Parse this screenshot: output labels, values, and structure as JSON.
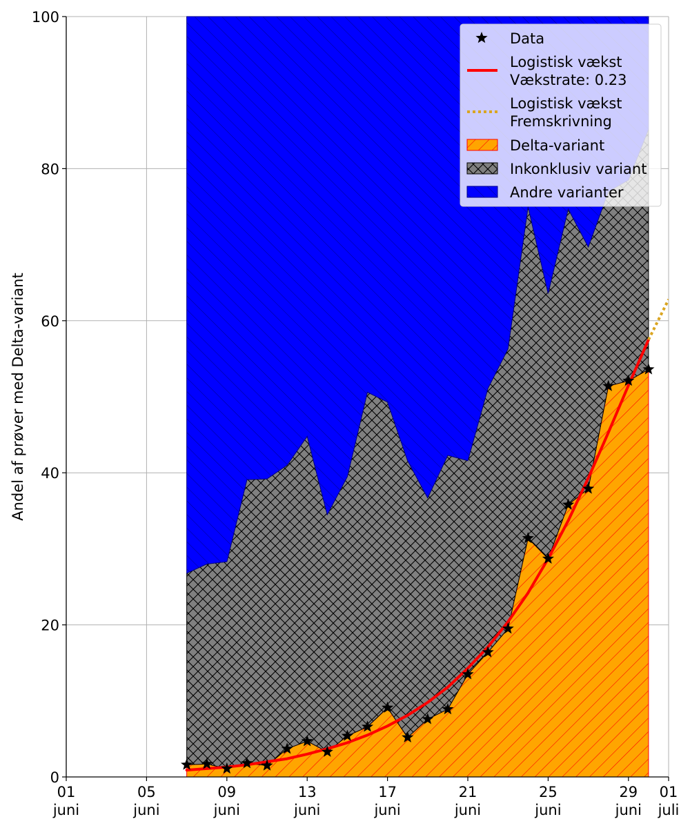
{
  "chart_data": {
    "type": "area",
    "title": "",
    "xlabel": "",
    "ylabel": "Andel af prøver med Delta-variant",
    "xlim": [
      "2021-06-01",
      "2021-07-01"
    ],
    "ylim": [
      0,
      100
    ],
    "grid": true,
    "legend_position": "top-right",
    "x_ticks": [
      {
        "date": "2021-06-01",
        "day": "01",
        "month": "juni"
      },
      {
        "date": "2021-06-05",
        "day": "05",
        "month": "juni"
      },
      {
        "date": "2021-06-09",
        "day": "09",
        "month": "juni"
      },
      {
        "date": "2021-06-13",
        "day": "13",
        "month": "juni"
      },
      {
        "date": "2021-06-17",
        "day": "17",
        "month": "juni"
      },
      {
        "date": "2021-06-21",
        "day": "21",
        "month": "juni"
      },
      {
        "date": "2021-06-25",
        "day": "25",
        "month": "juni"
      },
      {
        "date": "2021-06-29",
        "day": "29",
        "month": "juni"
      },
      {
        "date": "2021-07-01",
        "day": "01",
        "month": "juli"
      }
    ],
    "y_ticks": [
      0,
      20,
      40,
      60,
      80,
      100
    ],
    "x": [
      "2021-06-07",
      "2021-06-08",
      "2021-06-09",
      "2021-06-10",
      "2021-06-11",
      "2021-06-12",
      "2021-06-13",
      "2021-06-14",
      "2021-06-15",
      "2021-06-16",
      "2021-06-17",
      "2021-06-18",
      "2021-06-19",
      "2021-06-20",
      "2021-06-21",
      "2021-06-22",
      "2021-06-23",
      "2021-06-24",
      "2021-06-25",
      "2021-06-26",
      "2021-06-27",
      "2021-06-28",
      "2021-06-29",
      "2021-06-30"
    ],
    "series": [
      {
        "name": "Delta-variant",
        "kind": "stacked-area",
        "color": "#FFA500",
        "hatch_color": "#FF0000",
        "values": [
          1.6,
          1.7,
          1.1,
          1.8,
          1.5,
          3.7,
          4.7,
          3.3,
          5.4,
          6.6,
          9.1,
          5.2,
          7.6,
          8.9,
          13.5,
          16.4,
          19.5,
          31.4,
          28.7,
          35.8,
          37.9,
          51.4,
          52.1,
          53.6
        ]
      },
      {
        "name": "Inkonklusiv variant",
        "kind": "stacked-area",
        "color": "#808080",
        "hatch_color": "#000000",
        "values": [
          25.2,
          26.3,
          27.2,
          37.3,
          37.7,
          37.3,
          40.1,
          31.2,
          34.1,
          44.0,
          40.2,
          36.4,
          29.1,
          33.4,
          28.1,
          34.7,
          36.8,
          43.6,
          34.9,
          38.9,
          31.8,
          25.6,
          26.4,
          31.6
        ]
      },
      {
        "name": "Andre varianter",
        "kind": "stacked-area",
        "color": "#0000FF",
        "hatch_color": "#00008B",
        "values": [
          73.2,
          72.0,
          71.7,
          60.9,
          60.8,
          59.0,
          55.2,
          65.5,
          60.5,
          49.4,
          50.7,
          58.4,
          63.3,
          57.7,
          58.4,
          48.9,
          43.7,
          25.0,
          36.4,
          25.3,
          30.3,
          23.0,
          21.5,
          14.8
        ]
      },
      {
        "name": "Data",
        "kind": "markers",
        "color": "#000000",
        "marker": "star",
        "values": [
          1.6,
          1.7,
          1.1,
          1.8,
          1.5,
          3.7,
          4.7,
          3.3,
          5.4,
          6.6,
          9.1,
          5.2,
          7.6,
          8.9,
          13.5,
          16.4,
          19.5,
          31.4,
          28.7,
          35.8,
          37.9,
          51.4,
          52.1,
          53.6
        ]
      },
      {
        "name": "Logistisk vækst\nVækstrate: 0.23",
        "kind": "line",
        "color": "#FF0000",
        "style": "solid",
        "x": [
          "2021-06-07",
          "2021-06-08",
          "2021-06-09",
          "2021-06-10",
          "2021-06-11",
          "2021-06-12",
          "2021-06-13",
          "2021-06-14",
          "2021-06-15",
          "2021-06-16",
          "2021-06-17",
          "2021-06-18",
          "2021-06-19",
          "2021-06-20",
          "2021-06-21",
          "2021-06-22",
          "2021-06-23",
          "2021-06-24",
          "2021-06-25",
          "2021-06-26",
          "2021-06-27",
          "2021-06-28",
          "2021-06-29",
          "2021-06-30"
        ],
        "values": [
          0.9,
          1.1,
          1.3,
          1.6,
          2.0,
          2.4,
          3.0,
          3.7,
          4.5,
          5.5,
          6.7,
          8.1,
          9.8,
          11.8,
          14.3,
          17.1,
          20.4,
          24.2,
          28.7,
          33.7,
          39.3,
          45.3,
          51.5,
          57.5
        ]
      },
      {
        "name": "Logistisk vækst\nFremskrivning",
        "kind": "line",
        "color": "#DAA520",
        "style": "dotted",
        "x": [
          "2021-06-30",
          "2021-07-01"
        ],
        "values": [
          57.5,
          62.8
        ]
      }
    ]
  }
}
